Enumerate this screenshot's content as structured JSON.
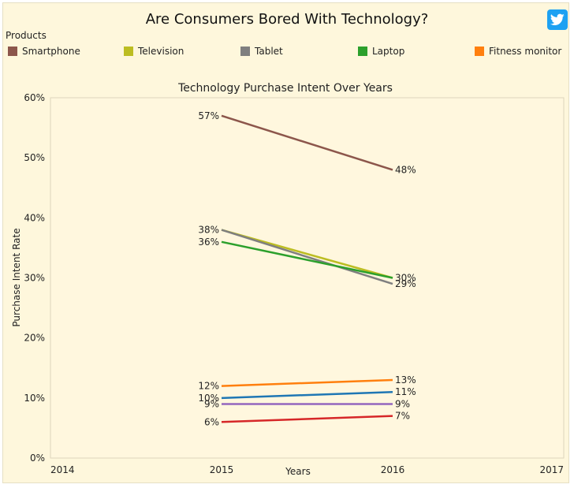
{
  "page": {
    "title": "Are Consumers Bored With Technology?",
    "share_icon": "twitter-icon",
    "background": "#fef7dc"
  },
  "legend": {
    "title": "Products",
    "items": [
      {
        "label": "Smartphone",
        "color": "#8c564b"
      },
      {
        "label": "Television",
        "color": "#bcbd22"
      },
      {
        "label": "Tablet",
        "color": "#7f7f7f"
      },
      {
        "label": "Laptop",
        "color": "#2ca02c"
      },
      {
        "label": "Fitness monitor",
        "color": "#ff7f0e"
      }
    ]
  },
  "chart_data": {
    "type": "line",
    "title": "Technology Purchase Intent Over Years",
    "xlabel": "Years",
    "ylabel": "Purchase Intent Rate",
    "xlim": [
      2014,
      2017
    ],
    "ylim": [
      0,
      0.6
    ],
    "x_ticks": [
      2014,
      2015,
      2016,
      2017
    ],
    "y_ticks": [
      0,
      0.1,
      0.2,
      0.3,
      0.4,
      0.5,
      0.6
    ],
    "y_tick_labels": [
      "0%",
      "10%",
      "20%",
      "30%",
      "40%",
      "50%",
      "60%"
    ],
    "grid": false,
    "x": [
      2015,
      2016
    ],
    "series": [
      {
        "name": "Smartphone",
        "color": "#8c564b",
        "values": [
          0.57,
          0.48
        ],
        "labels": [
          "57%",
          "48%"
        ]
      },
      {
        "name": "Television",
        "color": "#bcbd22",
        "values": [
          0.38,
          0.3
        ],
        "labels": [
          "38%",
          "30%"
        ]
      },
      {
        "name": "Tablet",
        "color": "#7f7f7f",
        "values": [
          0.38,
          0.29
        ],
        "labels": [
          "",
          "29%"
        ]
      },
      {
        "name": "Laptop",
        "color": "#2ca02c",
        "values": [
          0.36,
          0.3
        ],
        "labels": [
          "36%",
          ""
        ]
      },
      {
        "name": "Fitness monitor",
        "color": "#ff7f0e",
        "values": [
          0.12,
          0.13
        ],
        "labels": [
          "12%",
          "13%"
        ]
      },
      {
        "color": "#1f77b4",
        "values": [
          0.1,
          0.11
        ],
        "labels": [
          "10%",
          "11%"
        ]
      },
      {
        "color": "#9467bd",
        "values": [
          0.09,
          0.09
        ],
        "labels": [
          "9%",
          "9%"
        ]
      },
      {
        "color": "#d62728",
        "values": [
          0.06,
          0.07
        ],
        "labels": [
          "6%",
          "7%"
        ]
      }
    ]
  }
}
